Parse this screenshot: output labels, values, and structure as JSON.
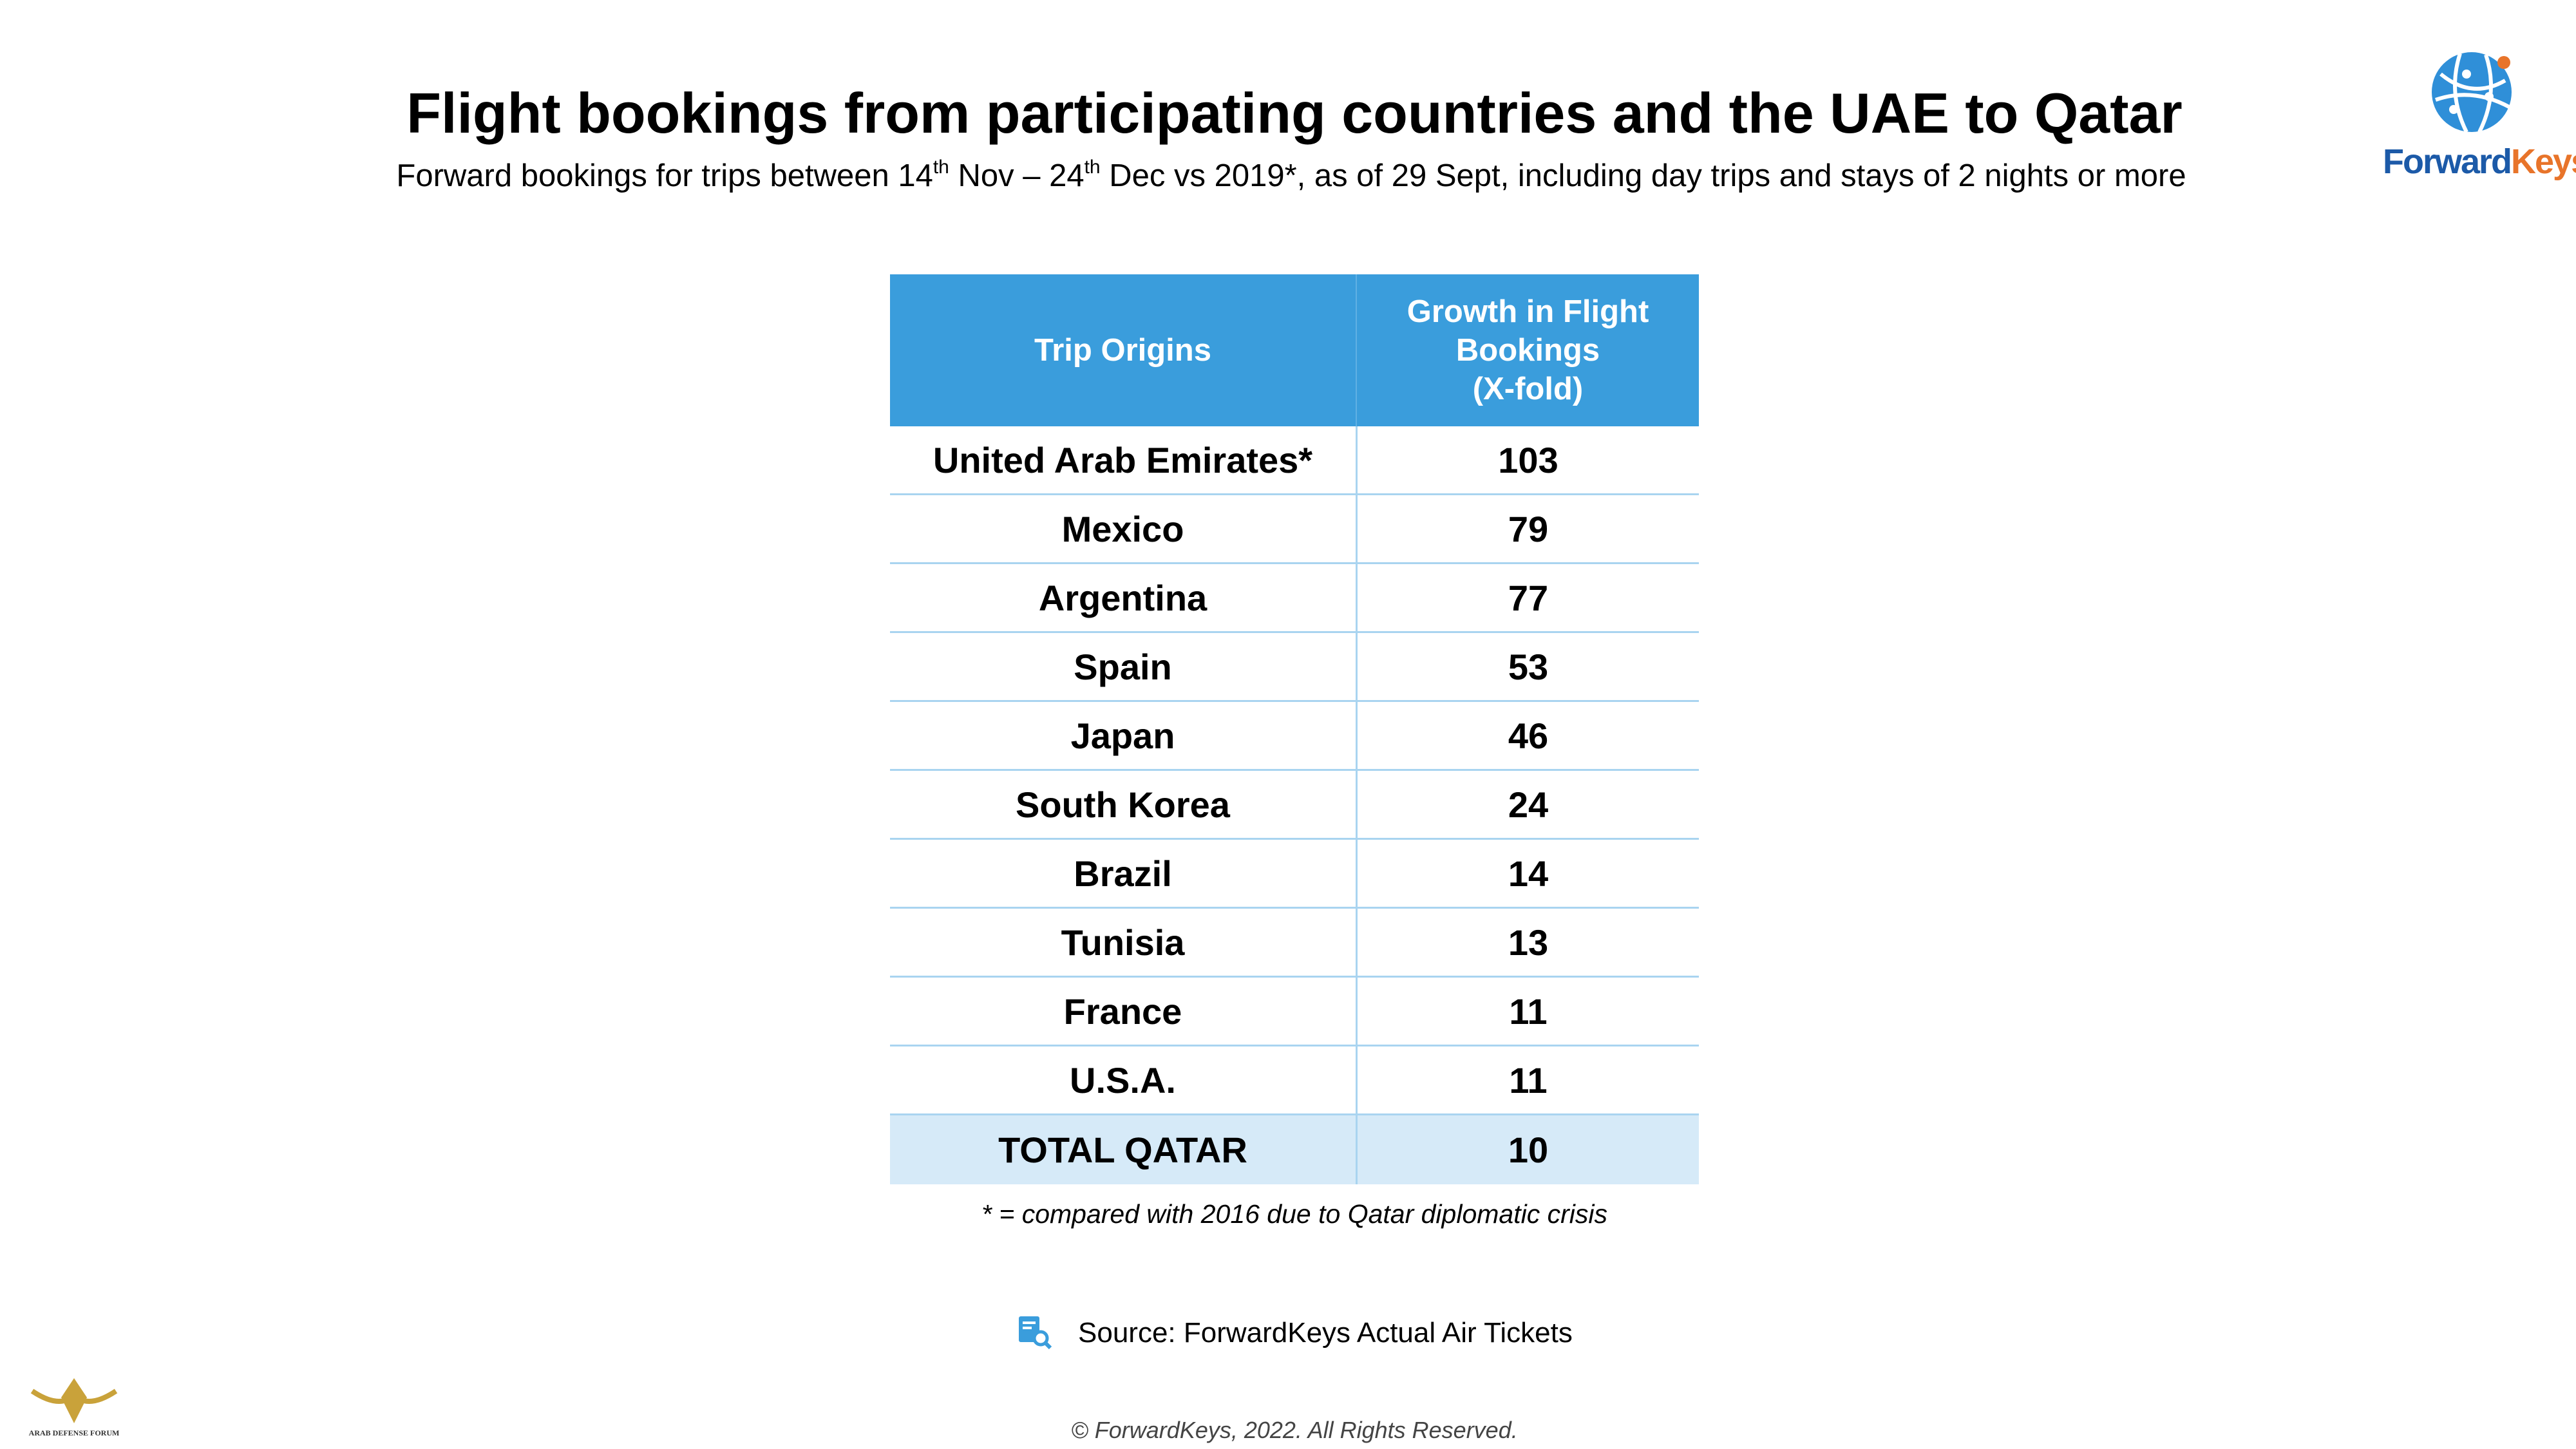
{
  "header": {
    "title": "Flight bookings from participating countries and the UAE to Qatar",
    "subtitle": [
      "Forward bookings for trips between 14",
      "th",
      " Nov – 24",
      "th",
      " Dec vs 2019*, as of 29 Sept, including day trips and stays of 2 nights or more"
    ]
  },
  "logo": {
    "text": [
      "Forward",
      "Keys"
    ]
  },
  "table": {
    "headers": [
      [
        "Trip Origins"
      ],
      [
        "Growth in Flight",
        "Bookings",
        "(X-fold)"
      ]
    ],
    "rows": [
      [
        "United Arab Emirates*",
        103
      ],
      [
        "Mexico",
        79
      ],
      [
        "Argentina",
        77
      ],
      [
        "Spain",
        53
      ],
      [
        "Japan",
        46
      ],
      [
        "South Korea",
        24
      ],
      [
        "Brazil",
        14
      ],
      [
        "Tunisia",
        13
      ],
      [
        "France",
        11
      ],
      [
        "U.S.A.",
        11
      ],
      [
        "TOTAL QATAR",
        10
      ]
    ]
  },
  "footnote": "* = compared with 2016 due to Qatar diplomatic crisis",
  "source": "Source: ForwardKeys Actual Air Tickets",
  "copyright": "© ForwardKeys, 2022. All Rights Reserved.",
  "watermark": "ARAB DEFENSE FORUM"
}
